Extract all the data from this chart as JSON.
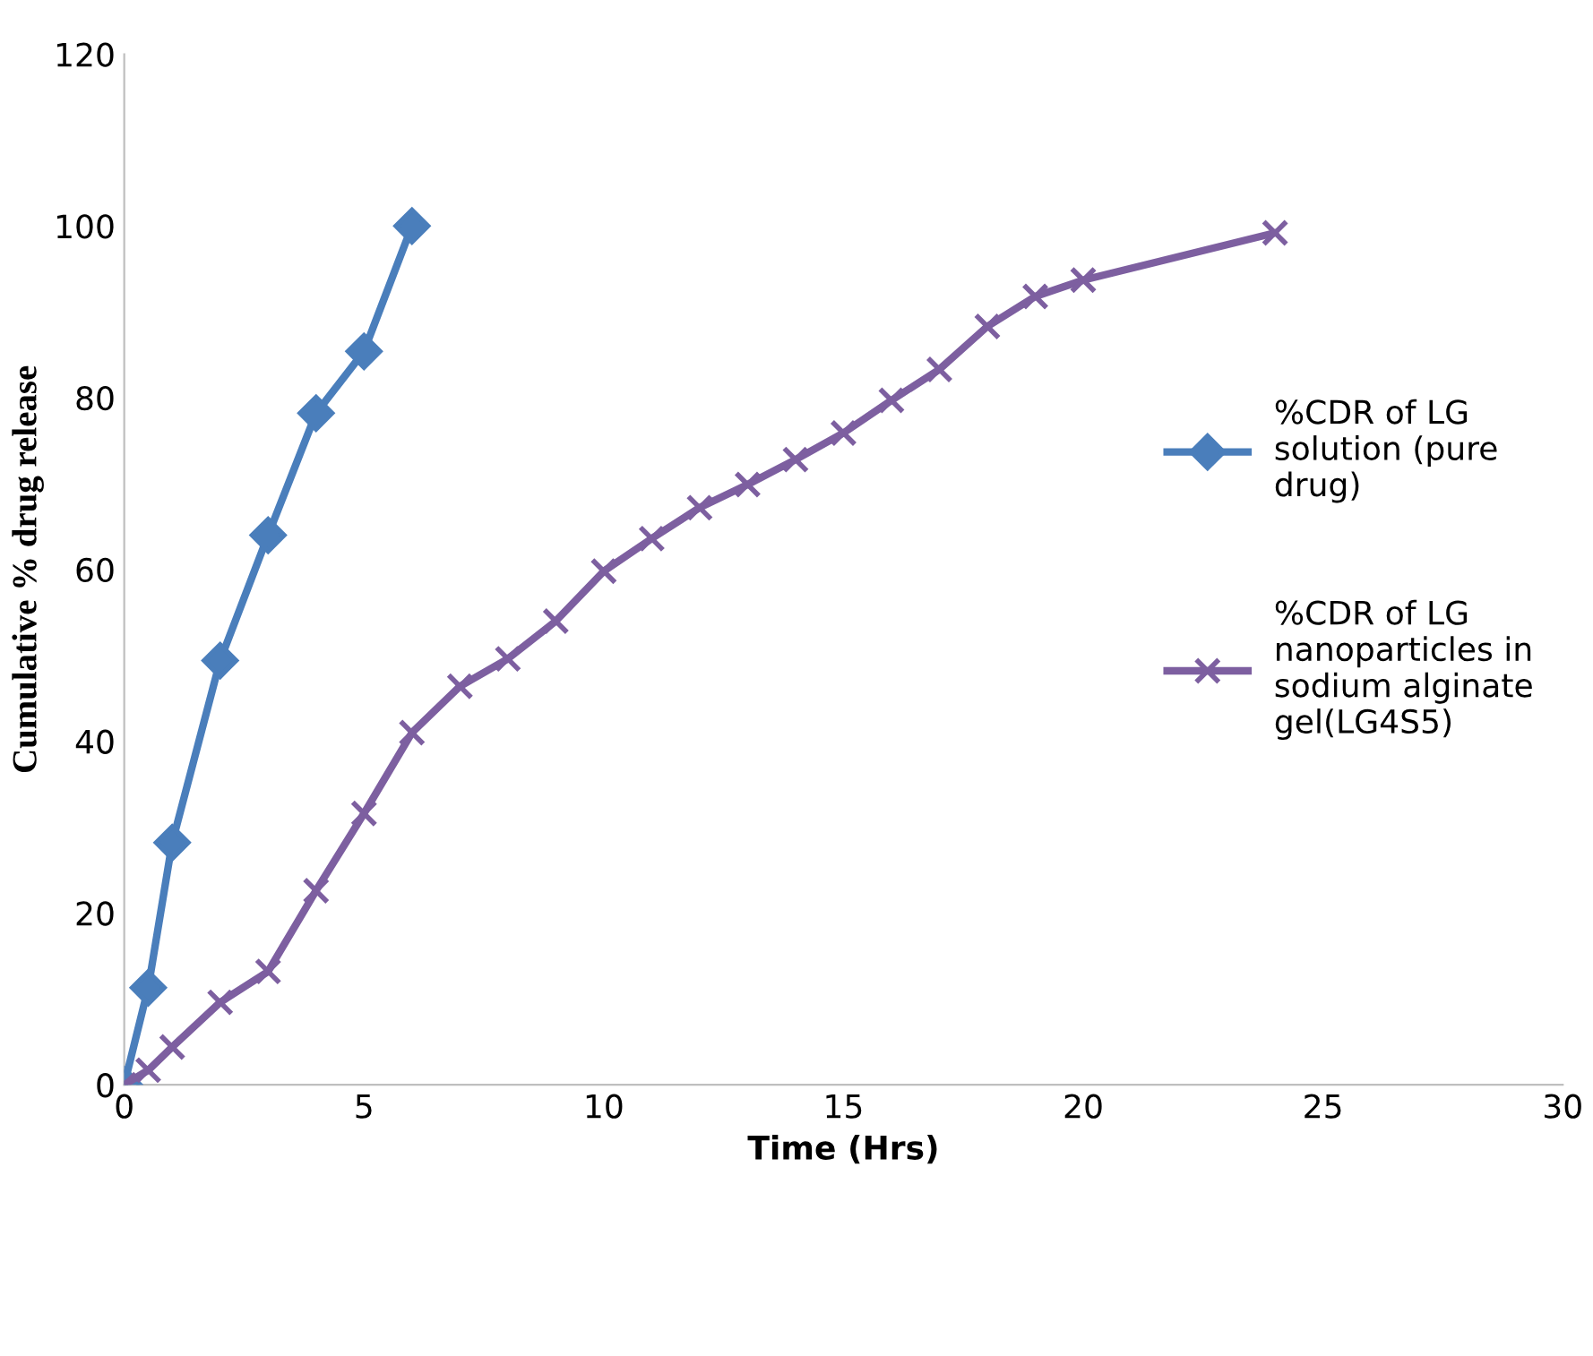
{
  "chart_data": {
    "type": "line",
    "xlabel": "Time (Hrs)",
    "ylabel": "Cumulative % drug release",
    "xlim": [
      0,
      30
    ],
    "xticks": [
      0,
      5,
      10,
      15,
      20,
      25,
      30
    ],
    "ylim": [
      0,
      120
    ],
    "yticks": [
      0,
      20,
      40,
      60,
      80,
      100,
      120
    ],
    "grid": false,
    "legend": "right",
    "series": [
      {
        "name": "%CDR of LG solution (pure drug)",
        "color": "#4a7ebb",
        "marker": "diamond",
        "x": [
          0,
          0.5,
          1,
          2,
          3,
          4,
          5,
          6
        ],
        "values": [
          0,
          11.3,
          28.2,
          49.4,
          64,
          78.2,
          85.4,
          100
        ]
      },
      {
        "name": "%CDR of LG nanoparticles in sodium alginate gel(LG4S5)",
        "color": "#7d5fa0",
        "marker": "cross",
        "x": [
          0,
          0.5,
          1,
          2,
          3,
          4,
          5,
          6,
          7,
          8,
          9,
          10,
          11,
          12,
          13,
          14,
          15,
          16,
          17,
          18,
          19,
          20,
          24
        ],
        "values": [
          0,
          1.7,
          4.4,
          9.6,
          13.2,
          22.6,
          31.6,
          41,
          46.4,
          49.6,
          54,
          59.8,
          63.6,
          67.2,
          69.9,
          72.8,
          75.9,
          79.7,
          83.3,
          88.3,
          91.8,
          93.7,
          99.2
        ]
      }
    ]
  }
}
